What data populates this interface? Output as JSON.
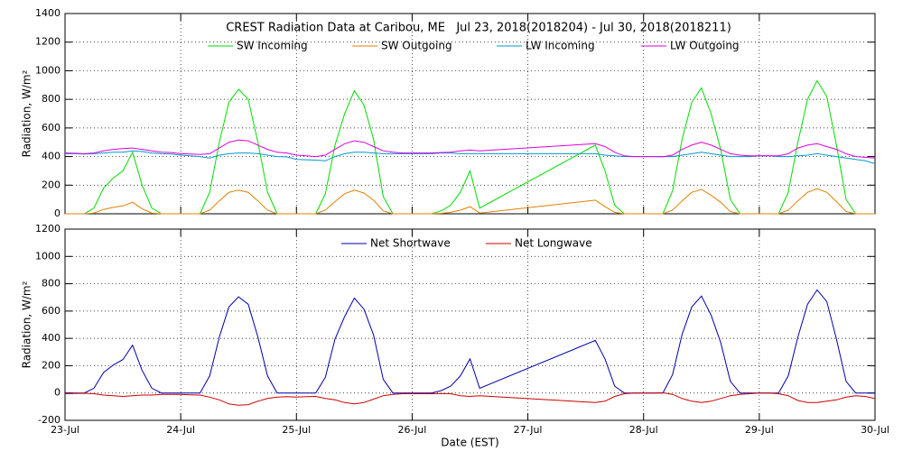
{
  "chart_data": [
    {
      "type": "line",
      "title": "CREST Radiation Data at Caribou, ME   Jul 23, 2018(2018204) - Jul 30, 2018(2018211)",
      "ylabel": "Radiation, W/m²",
      "x": [
        0,
        2,
        4,
        6,
        8,
        10,
        12,
        14,
        16,
        18,
        20,
        22,
        24,
        26,
        28,
        30,
        32,
        34,
        36,
        38,
        40,
        42,
        44,
        46,
        48,
        50,
        52,
        54,
        56,
        58,
        60,
        62,
        64,
        66,
        68,
        70,
        72,
        74,
        76,
        78,
        80,
        82,
        84,
        86,
        110,
        112,
        114,
        116,
        118,
        120,
        122,
        124,
        126,
        128,
        130,
        132,
        134,
        136,
        138,
        140,
        142,
        144,
        146,
        148,
        150,
        152,
        154,
        156,
        158,
        160,
        162,
        164,
        166,
        168
      ],
      "xlim": [
        0,
        168
      ],
      "xticks": [
        0,
        24,
        48,
        72,
        96,
        120,
        144,
        168
      ],
      "ylim": [
        0,
        1400
      ],
      "yticks": [
        0,
        200,
        400,
        600,
        800,
        1000,
        1200,
        1400
      ],
      "grid": true,
      "series": [
        {
          "name": "SW Incoming",
          "color": "#00dd00",
          "values": [
            0,
            0,
            0,
            40,
            180,
            250,
            300,
            430,
            200,
            40,
            0,
            0,
            0,
            0,
            0,
            150,
            500,
            780,
            870,
            800,
            500,
            150,
            0,
            0,
            0,
            0,
            0,
            140,
            480,
            700,
            860,
            760,
            520,
            120,
            0,
            0,
            0,
            0,
            0,
            20,
            60,
            150,
            300,
            40,
            480,
            300,
            60,
            0,
            0,
            0,
            0,
            0,
            160,
            520,
            780,
            880,
            700,
            450,
            100,
            0,
            0,
            0,
            0,
            0,
            150,
            500,
            800,
            930,
            820,
            480,
            100,
            0,
            0,
            0
          ]
        },
        {
          "name": "SW Outgoing",
          "color": "#e08000",
          "values": [
            0,
            0,
            0,
            5,
            30,
            45,
            55,
            80,
            35,
            5,
            0,
            0,
            0,
            0,
            0,
            25,
            90,
            150,
            165,
            150,
            90,
            25,
            0,
            0,
            0,
            0,
            0,
            25,
            85,
            140,
            165,
            145,
            95,
            20,
            0,
            0,
            0,
            0,
            0,
            3,
            10,
            25,
            50,
            5,
            95,
            50,
            10,
            0,
            0,
            0,
            0,
            0,
            25,
            90,
            150,
            170,
            130,
            80,
            15,
            0,
            0,
            0,
            0,
            0,
            25,
            90,
            150,
            175,
            150,
            85,
            15,
            0,
            0,
            0
          ]
        },
        {
          "name": "LW Incoming",
          "color": "#0099cc",
          "values": [
            420,
            420,
            418,
            420,
            425,
            430,
            430,
            440,
            435,
            425,
            420,
            418,
            410,
            405,
            400,
            390,
            410,
            420,
            425,
            425,
            420,
            410,
            400,
            398,
            380,
            378,
            375,
            370,
            400,
            420,
            430,
            430,
            425,
            420,
            420,
            420,
            420,
            420,
            420,
            425,
            425,
            420,
            420,
            420,
            420,
            410,
            405,
            400,
            400,
            400,
            400,
            400,
            400,
            410,
            420,
            430,
            420,
            410,
            400,
            400,
            400,
            405,
            405,
            400,
            400,
            405,
            410,
            420,
            410,
            400,
            390,
            380,
            370,
            350
          ]
        },
        {
          "name": "LW Outgoing",
          "color": "#dd00dd",
          "values": [
            425,
            423,
            420,
            425,
            440,
            450,
            455,
            460,
            450,
            440,
            430,
            428,
            420,
            418,
            415,
            420,
            460,
            500,
            515,
            510,
            480,
            450,
            430,
            425,
            410,
            405,
            400,
            410,
            450,
            490,
            510,
            500,
            470,
            440,
            430,
            425,
            425,
            425,
            425,
            428,
            430,
            440,
            445,
            440,
            490,
            470,
            430,
            405,
            400,
            400,
            400,
            398,
            410,
            450,
            480,
            500,
            480,
            450,
            420,
            410,
            405,
            405,
            405,
            405,
            420,
            460,
            480,
            490,
            470,
            450,
            420,
            400,
            395,
            390
          ]
        }
      ]
    },
    {
      "type": "line",
      "ylabel": "Radiation, W/m²",
      "xlabel": "Date (EST)",
      "x": [
        0,
        2,
        4,
        6,
        8,
        10,
        12,
        14,
        16,
        18,
        20,
        22,
        24,
        26,
        28,
        30,
        32,
        34,
        36,
        38,
        40,
        42,
        44,
        46,
        48,
        50,
        52,
        54,
        56,
        58,
        60,
        62,
        64,
        66,
        68,
        70,
        72,
        74,
        76,
        78,
        80,
        82,
        84,
        86,
        110,
        112,
        114,
        116,
        118,
        120,
        122,
        124,
        126,
        128,
        130,
        132,
        134,
        136,
        138,
        140,
        142,
        144,
        146,
        148,
        150,
        152,
        154,
        156,
        158,
        160,
        162,
        164,
        166,
        168
      ],
      "xlim": [
        0,
        168
      ],
      "xticks": [
        {
          "value": 0,
          "label": "23-Jul"
        },
        {
          "value": 24,
          "label": "24-Jul"
        },
        {
          "value": 48,
          "label": "25-Jul"
        },
        {
          "value": 72,
          "label": "26-Jul"
        },
        {
          "value": 96,
          "label": "27-Jul"
        },
        {
          "value": 120,
          "label": "28-Jul"
        },
        {
          "value": 144,
          "label": "29-Jul"
        },
        {
          "value": 168,
          "label": "30-Jul"
        }
      ],
      "ylim": [
        -200,
        1200
      ],
      "yticks": [
        -200,
        0,
        200,
        400,
        600,
        800,
        1000,
        1200
      ],
      "grid": true,
      "series": [
        {
          "name": "Net Shortwave",
          "color": "#0000aa",
          "values": [
            0,
            0,
            0,
            35,
            150,
            205,
            245,
            350,
            165,
            35,
            0,
            0,
            0,
            0,
            0,
            125,
            410,
            630,
            705,
            650,
            410,
            125,
            0,
            0,
            0,
            0,
            0,
            115,
            395,
            560,
            695,
            615,
            425,
            100,
            0,
            0,
            0,
            0,
            0,
            17,
            50,
            125,
            250,
            35,
            385,
            250,
            50,
            0,
            0,
            0,
            0,
            0,
            135,
            430,
            630,
            710,
            570,
            370,
            85,
            0,
            0,
            0,
            0,
            0,
            125,
            410,
            650,
            755,
            670,
            395,
            85,
            0,
            0,
            0
          ]
        },
        {
          "name": "Net Longwave",
          "color": "#cc0000",
          "values": [
            -5,
            -3,
            -2,
            -5,
            -15,
            -20,
            -25,
            -20,
            -15,
            -15,
            -10,
            -10,
            -10,
            -13,
            -15,
            -30,
            -50,
            -80,
            -90,
            -85,
            -60,
            -40,
            -30,
            -27,
            -30,
            -27,
            -25,
            -40,
            -50,
            -70,
            -80,
            -70,
            -45,
            -20,
            -10,
            -5,
            -5,
            -5,
            -5,
            -3,
            -5,
            -20,
            -25,
            -20,
            -70,
            -60,
            -25,
            -5,
            0,
            0,
            0,
            2,
            -10,
            -40,
            -60,
            -70,
            -60,
            -40,
            -20,
            -10,
            -5,
            0,
            0,
            -5,
            -20,
            -55,
            -70,
            -70,
            -60,
            -50,
            -30,
            -20,
            -25,
            -40
          ]
        }
      ]
    }
  ]
}
